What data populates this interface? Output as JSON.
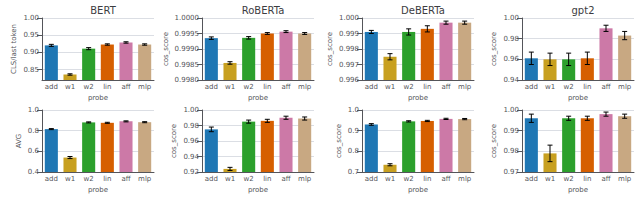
{
  "chart_data": [
    {
      "type": "bar",
      "title": "BERT",
      "xlabel": "probe",
      "ylabel": "CLS/last token",
      "categories": [
        "add",
        "w1",
        "w2",
        "lin",
        "aff",
        "mlp"
      ],
      "values": [
        0.9205,
        0.836,
        0.911,
        0.923,
        0.929,
        0.923
      ],
      "errors": [
        0.003,
        0.002,
        0.003,
        0.002,
        0.002,
        0.002
      ],
      "colors": [
        "#1f77b4",
        "#c8a020",
        "#2ca02c",
        "#d65f00",
        "#cc79a7",
        "#c8a882"
      ],
      "ylim": [
        0.82,
        1.0
      ],
      "yticks": [
        0.85,
        {
          "value": 0.9,
          "label": "0.90"
        },
        0.95,
        {
          "value": 1.0,
          "label": "1.00"
        }
      ],
      "grid": true
    },
    {
      "type": "bar",
      "title": "RoBERTa",
      "xlabel": "probe",
      "ylabel": "cos_score",
      "categories": [
        "add",
        "w1",
        "w2",
        "lin",
        "aff",
        "mlp"
      ],
      "values": [
        0.99935,
        0.99855,
        0.99936,
        0.9995,
        0.99956,
        0.9995
      ],
      "errors": [
        4e-05,
        4e-05,
        4e-05,
        3e-05,
        3e-05,
        3e-05
      ],
      "colors": [
        "#1f77b4",
        "#c8a020",
        "#2ca02c",
        "#d65f00",
        "#cc79a7",
        "#c8a882"
      ],
      "ylim": [
        0.998,
        1.0
      ],
      "yticks": [
        {
          "value": 0.998,
          "label": "0.9980"
        },
        0.9985,
        {
          "value": 0.999,
          "label": "0.9990"
        },
        0.9995,
        {
          "value": 1.0,
          "label": "1.0000"
        }
      ],
      "grid": true
    },
    {
      "type": "bar",
      "title": "DeBERTa",
      "xlabel": "probe",
      "ylabel": "cos_score",
      "categories": [
        "add",
        "w1",
        "w2",
        "lin",
        "aff",
        "mlp"
      ],
      "values": [
        0.9991,
        0.9975,
        0.9991,
        0.9993,
        0.9997,
        0.9997
      ],
      "errors": [
        0.0001,
        0.0002,
        0.0002,
        0.0002,
        0.0001,
        0.0001
      ],
      "colors": [
        "#1f77b4",
        "#c8a020",
        "#2ca02c",
        "#d65f00",
        "#cc79a7",
        "#c8a882"
      ],
      "ylim": [
        0.996,
        1.0
      ],
      "yticks": [
        0.996,
        0.997,
        0.998,
        0.999,
        {
          "value": 1.0,
          "label": "1.000"
        }
      ],
      "grid": true
    },
    {
      "type": "bar",
      "title": "gpt2",
      "xlabel": "probe",
      "ylabel": "cos_score",
      "categories": [
        "add",
        "w1",
        "w2",
        "lin",
        "aff",
        "mlp"
      ],
      "values": [
        0.961,
        0.96,
        0.96,
        0.961,
        0.99,
        0.983
      ],
      "errors": [
        0.006,
        0.006,
        0.006,
        0.006,
        0.003,
        0.004
      ],
      "colors": [
        "#1f77b4",
        "#c8a020",
        "#2ca02c",
        "#d65f00",
        "#cc79a7",
        "#c8a882"
      ],
      "ylim": [
        0.94,
        1.0
      ],
      "yticks": [
        0.94,
        0.96,
        0.98,
        {
          "value": 1.0,
          "label": "1.00"
        }
      ],
      "grid": true
    },
    {
      "type": "bar",
      "xlabel": "probe",
      "ylabel": "AVG",
      "categories": [
        "add",
        "w1",
        "w2",
        "lin",
        "aff",
        "mlp"
      ],
      "values": [
        0.815,
        0.54,
        0.88,
        0.876,
        0.89,
        0.882
      ],
      "errors": [
        0.005,
        0.01,
        0.005,
        0.005,
        0.005,
        0.005
      ],
      "colors": [
        "#1f77b4",
        "#c8a020",
        "#2ca02c",
        "#d65f00",
        "#cc79a7",
        "#c8a882"
      ],
      "ylim": [
        0.4,
        1.0
      ],
      "yticks": [
        0.4,
        0.6,
        0.8,
        {
          "value": 1.0,
          "label": "1.0"
        }
      ],
      "grid": true
    },
    {
      "type": "bar",
      "xlabel": "probe",
      "ylabel": "cos_score",
      "categories": [
        "add",
        "w1",
        "w2",
        "lin",
        "aff",
        "mlp"
      ],
      "values": [
        0.975,
        0.924,
        0.985,
        0.986,
        0.99,
        0.989
      ],
      "errors": [
        0.003,
        0.002,
        0.002,
        0.002,
        0.002,
        0.002
      ],
      "colors": [
        "#1f77b4",
        "#c8a020",
        "#2ca02c",
        "#d65f00",
        "#cc79a7",
        "#c8a882"
      ],
      "ylim": [
        0.92,
        1.0
      ],
      "yticks": [
        0.92,
        0.94,
        0.96,
        0.98,
        {
          "value": 1.0,
          "label": "1.00"
        }
      ],
      "grid": true
    },
    {
      "type": "bar",
      "xlabel": "probe",
      "ylabel": "cos_score",
      "categories": [
        "add",
        "w1",
        "w2",
        "lin",
        "aff",
        "mlp"
      ],
      "values": [
        0.93,
        0.735,
        0.945,
        0.947,
        0.957,
        0.956
      ],
      "errors": [
        0.004,
        0.005,
        0.003,
        0.003,
        0.003,
        0.003
      ],
      "colors": [
        "#1f77b4",
        "#c8a020",
        "#2ca02c",
        "#d65f00",
        "#cc79a7",
        "#c8a882"
      ],
      "ylim": [
        0.7,
        1.0
      ],
      "yticks": [
        0.7,
        0.8,
        0.9,
        {
          "value": 1.0,
          "label": "1.0"
        }
      ],
      "grid": true
    },
    {
      "type": "bar",
      "xlabel": "probe",
      "ylabel": "cos_score",
      "categories": [
        "add",
        "w1",
        "w2",
        "lin",
        "aff",
        "mlp"
      ],
      "values": [
        0.996,
        0.979,
        0.996,
        0.996,
        0.998,
        0.997
      ],
      "errors": [
        0.002,
        0.004,
        0.001,
        0.001,
        0.001,
        0.001
      ],
      "colors": [
        "#1f77b4",
        "#c8a020",
        "#2ca02c",
        "#d65f00",
        "#cc79a7",
        "#c8a882"
      ],
      "ylim": [
        0.97,
        1.0
      ],
      "yticks": [
        0.97,
        0.98,
        0.99,
        {
          "value": 1.0,
          "label": "1.00"
        }
      ],
      "grid": true
    }
  ]
}
